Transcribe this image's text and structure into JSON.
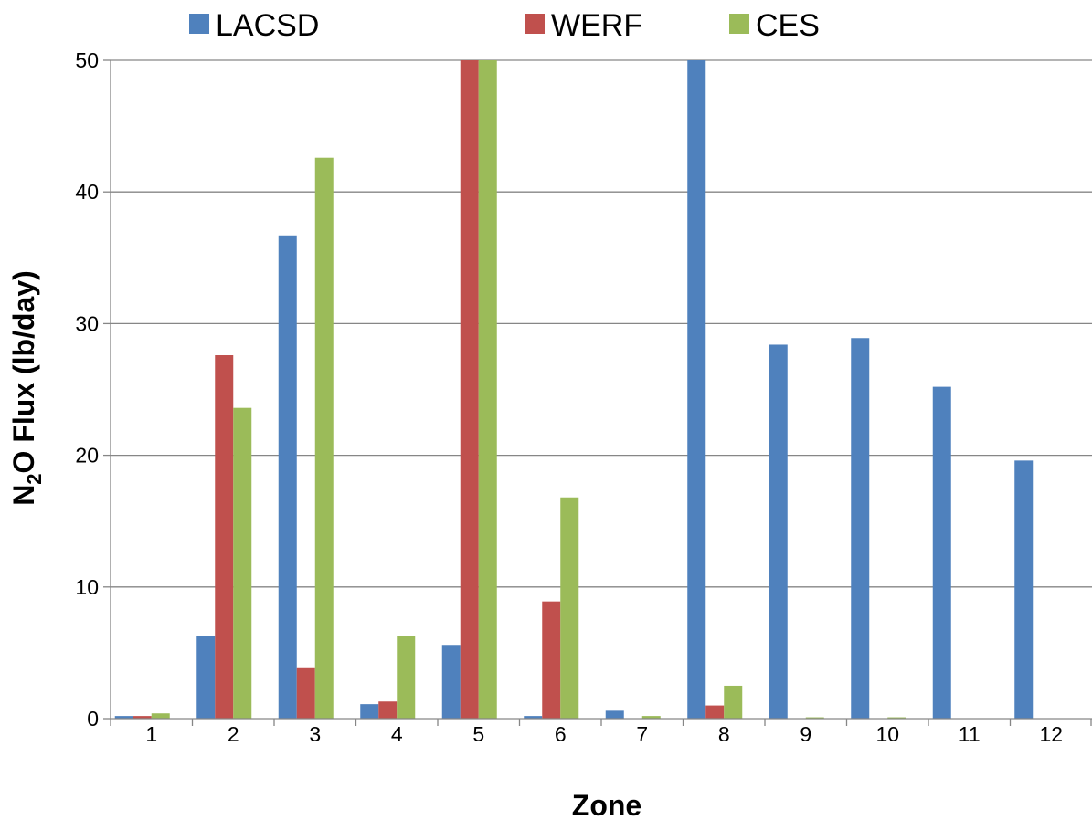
{
  "chart_data": {
    "type": "bar",
    "title": "",
    "xlabel": "Zone",
    "ylabel_parts": [
      "N",
      "2",
      "O Flux (lb/day)"
    ],
    "categories": [
      "1",
      "2",
      "3",
      "4",
      "5",
      "6",
      "7",
      "8",
      "9",
      "10",
      "11",
      "12"
    ],
    "series": [
      {
        "name": "LACSD",
        "color": "#4F81BD",
        "values": [
          0.2,
          6.3,
          36.7,
          1.1,
          5.6,
          0.2,
          0.6,
          50,
          28.4,
          28.9,
          25.2,
          19.6
        ]
      },
      {
        "name": "WERF",
        "color": "#C0504D",
        "values": [
          0.2,
          27.6,
          3.9,
          1.3,
          50,
          8.9,
          0,
          1.0,
          0,
          0,
          0,
          0
        ]
      },
      {
        "name": "CES",
        "color": "#9BBB59",
        "values": [
          0.4,
          23.6,
          42.6,
          6.3,
          50,
          16.8,
          0.2,
          2.5,
          0.1,
          0.1,
          0,
          0
        ]
      }
    ],
    "ylim": [
      0,
      50
    ],
    "yticks": [
      "0",
      "10",
      "20",
      "30",
      "40",
      "50"
    ],
    "grid": true,
    "legend_position": "top"
  }
}
